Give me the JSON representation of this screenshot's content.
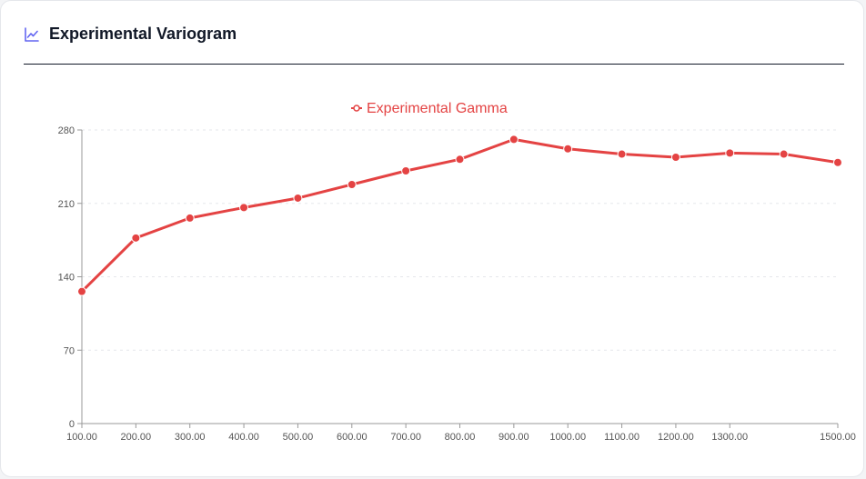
{
  "header": {
    "title": "Experimental Variogram",
    "icon": "line-chart-icon"
  },
  "colors": {
    "series": "#e44343",
    "axis": "#999999",
    "grid": "#e5e7eb",
    "tick_text": "#555555",
    "accent_icon": "#6366f1"
  },
  "chart_data": {
    "type": "line",
    "title": "",
    "xlabel": "",
    "ylabel": "",
    "xlim": [
      100,
      1500
    ],
    "ylim": [
      0,
      280
    ],
    "yticks": [
      0,
      70,
      140,
      210,
      280
    ],
    "x_tick_labels": [
      {
        "value": 100,
        "label": "100.00"
      },
      {
        "value": 200,
        "label": "200.00"
      },
      {
        "value": 300,
        "label": "300.00"
      },
      {
        "value": 400,
        "label": "400.00"
      },
      {
        "value": 500,
        "label": "500.00"
      },
      {
        "value": 600,
        "label": "600.00"
      },
      {
        "value": 700,
        "label": "700.00"
      },
      {
        "value": 800,
        "label": "800.00"
      },
      {
        "value": 900,
        "label": "900.00"
      },
      {
        "value": 1000,
        "label": "1000.00"
      },
      {
        "value": 1100,
        "label": "1100.00"
      },
      {
        "value": 1200,
        "label": "1200.00"
      },
      {
        "value": 1300,
        "label": "1300.00"
      },
      {
        "value": 1500,
        "label": "1500.00"
      }
    ],
    "grid": true,
    "legend": "top-center",
    "series": [
      {
        "name": "Experimental Gamma",
        "x": [
          100,
          200,
          300,
          400,
          500,
          600,
          700,
          800,
          900,
          1000,
          1100,
          1200,
          1300,
          1400,
          1500
        ],
        "y": [
          126,
          177,
          196,
          206,
          215,
          228,
          241,
          252,
          271,
          262,
          257,
          254,
          258,
          257,
          249
        ]
      }
    ]
  }
}
